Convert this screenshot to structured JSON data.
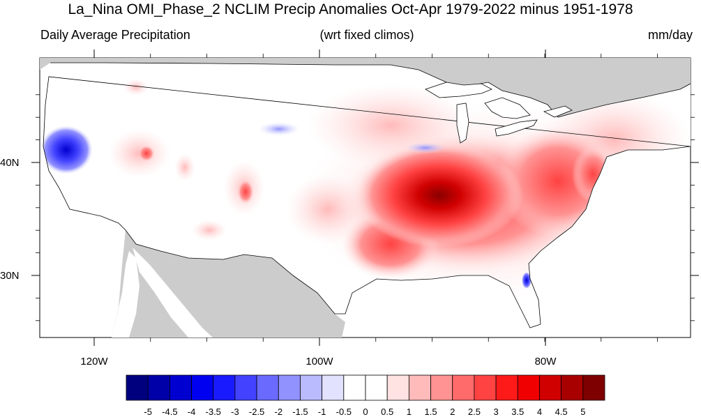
{
  "title": "La_Nina OMI_Phase_2 NCLIM Precip Anomalies Oct-Apr 1979-2022 minus 1951-1978",
  "subtitle_left": "Daily Average Precipitation",
  "subtitle_center": "(wrt fixed climos)",
  "subtitle_right": "mm/day",
  "lat_labels": [
    "40N",
    "30N"
  ],
  "lon_labels": [
    "120W",
    "100W",
    "80W"
  ],
  "colorbar": {
    "colors": [
      "#00007f",
      "#0000a8",
      "#0000d0",
      "#0000f0",
      "#1a1aff",
      "#4242ff",
      "#6a6aff",
      "#9292ff",
      "#babaff",
      "#e2e2ff",
      "#ffffff",
      "#ffffff",
      "#ffe2e2",
      "#ffbaba",
      "#ff9292",
      "#ff6a6a",
      "#ff4242",
      "#ff1a1a",
      "#f00000",
      "#d00000",
      "#a80000",
      "#7f0000"
    ],
    "labels": [
      "-5",
      "-4.5",
      "-4",
      "-3.5",
      "-3",
      "-2.5",
      "-2",
      "-1.5",
      "-1",
      "-0.5",
      "0",
      "0.5",
      "1",
      "1.5",
      "2",
      "2.5",
      "3",
      "3.5",
      "4",
      "4.5",
      "5"
    ]
  },
  "map": {
    "ocean_land_outside_color": "#cccccc",
    "features": [
      "wet anomaly over central/eastern US",
      "dry anomaly over northern California",
      "small dry anomaly over Florida"
    ]
  }
}
